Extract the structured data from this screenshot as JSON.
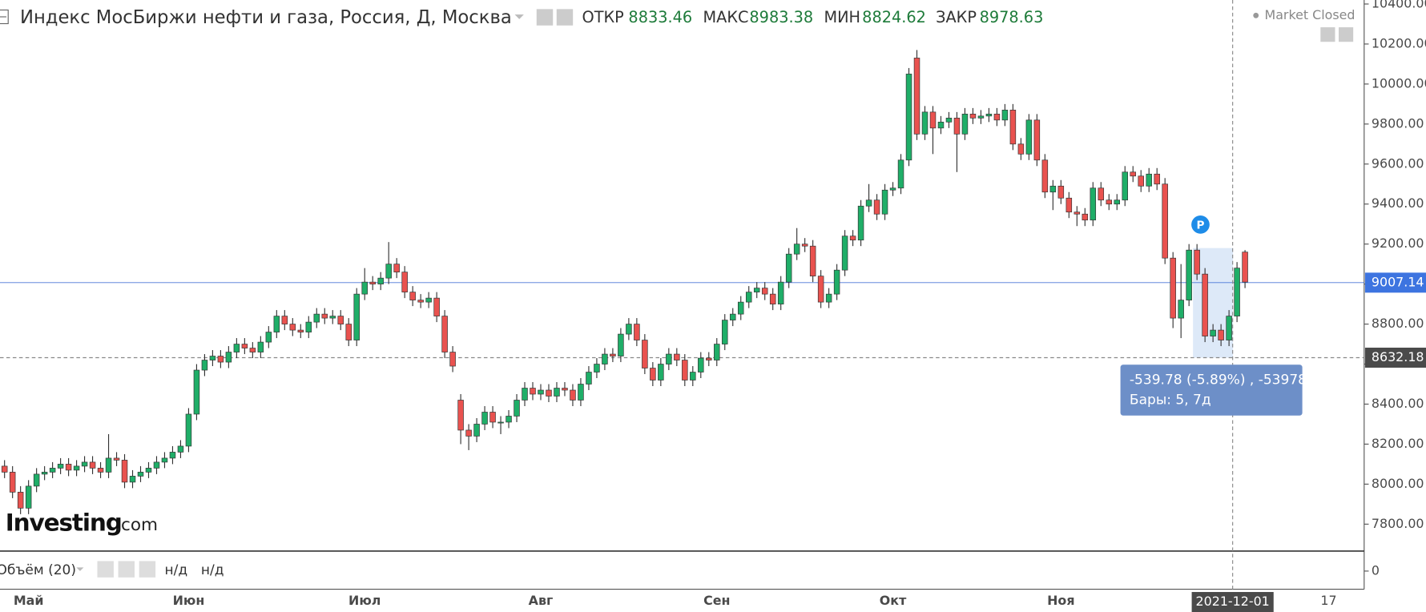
{
  "chart_data": {
    "type": "candlestick",
    "title": "Индекс МосБиржи нефти и газа, Россия, Д, Москва",
    "ohlc": [
      {
        "label": "ОТКР",
        "value": 8833.46
      },
      {
        "label": "МАКС",
        "value": 8983.38
      },
      {
        "label": "МИН",
        "value": 8824.62
      },
      {
        "label": "ЗАКР",
        "value": 8978.63
      }
    ],
    "status": "Market Closed",
    "watermark": [
      "Investing",
      ".com"
    ],
    "up_color": "#1fae68",
    "down_color": "#e9524f",
    "categories": [
      null,
      null,
      null,
      "Май",
      null,
      null,
      null,
      null,
      null,
      null,
      null,
      null,
      null,
      null,
      null,
      null,
      null,
      null,
      null,
      null,
      null,
      null,
      null,
      "Июн",
      null,
      null,
      null,
      null,
      null,
      null,
      null,
      null,
      null,
      null,
      null,
      null,
      null,
      null,
      null,
      null,
      null,
      null,
      null,
      null,
      null,
      "Июл",
      null,
      null,
      null,
      null,
      null,
      null,
      null,
      null,
      null,
      null,
      null,
      null,
      null,
      null,
      null,
      null,
      null,
      null,
      null,
      null,
      null,
      "Авг",
      null,
      null,
      null,
      null,
      null,
      null,
      null,
      null,
      null,
      null,
      null,
      null,
      null,
      null,
      null,
      null,
      null,
      null,
      null,
      null,
      null,
      "Сен",
      null,
      null,
      null,
      null,
      null,
      null,
      null,
      null,
      null,
      null,
      null,
      null,
      null,
      null,
      null,
      null,
      null,
      null,
      null,
      null,
      null,
      "Окт",
      null,
      null,
      null,
      null,
      null,
      null,
      null,
      null,
      null,
      null,
      null,
      null,
      null,
      null,
      null,
      null,
      null,
      null,
      null,
      null,
      "Ноя",
      null,
      null,
      null,
      null,
      null,
      null,
      null,
      null,
      null,
      null,
      null,
      null,
      null,
      null,
      null,
      null,
      null,
      null,
      null,
      null,
      "2021-12-01",
      null,
      null
    ],
    "x_extra_label": "17",
    "open": [
      8090,
      8060,
      7960,
      7880,
      7990,
      8050,
      8060,
      8080,
      8100,
      8070,
      8090,
      8110,
      8080,
      8060,
      8130,
      8120,
      8010,
      8040,
      8060,
      8080,
      8110,
      8130,
      8160,
      8190,
      8350,
      8570,
      8620,
      8640,
      8610,
      8660,
      8700,
      8680,
      8660,
      8710,
      8760,
      8840,
      8800,
      8770,
      8760,
      8810,
      8850,
      8830,
      8840,
      8800,
      8720,
      8950,
      9010,
      9000,
      9030,
      9100,
      9060,
      8960,
      8920,
      8910,
      8930,
      8840,
      8660,
      8420,
      8270,
      8240,
      8300,
      8360,
      8310,
      8310,
      8340,
      8420,
      8480,
      8450,
      8470,
      8440,
      8480,
      8470,
      8420,
      8500,
      8560,
      8600,
      8650,
      8640,
      8750,
      8800,
      8720,
      8580,
      8520,
      8600,
      8650,
      8620,
      8520,
      8560,
      8630,
      8620,
      8700,
      8820,
      8850,
      8910,
      8960,
      8980,
      8950,
      8900,
      9010,
      9150,
      9200,
      9190,
      9040,
      8910,
      8950,
      9070,
      9240,
      9220,
      9390,
      9420,
      9350,
      9470,
      9480,
      9620,
      10130,
      9750,
      9860,
      9780,
      9810,
      9830,
      9750,
      9850,
      9830,
      9840,
      9850,
      9820,
      9870,
      9700,
      9650,
      9820,
      9620,
      9460,
      9490,
      9430,
      9360,
      9350,
      9320,
      9480,
      9420,
      9400,
      9420,
      9560,
      9540,
      9490,
      9550,
      9500,
      9130,
      8830,
      8920,
      9170,
      9050,
      8740,
      8770,
      8720,
      8840,
      9160
    ],
    "high": [
      8120,
      8090,
      7990,
      8020,
      8080,
      8090,
      8110,
      8130,
      8130,
      8120,
      8140,
      8140,
      8110,
      8250,
      8160,
      8150,
      8070,
      8090,
      8110,
      8140,
      8160,
      8190,
      8220,
      8380,
      8600,
      8650,
      8670,
      8670,
      8690,
      8730,
      8730,
      8710,
      8740,
      8790,
      8870,
      8870,
      8830,
      8800,
      8840,
      8880,
      8880,
      8870,
      8870,
      8830,
      8980,
      9080,
      9040,
      9060,
      9210,
      9130,
      9090,
      8990,
      8950,
      8960,
      8960,
      8870,
      8690,
      8450,
      8300,
      8330,
      8390,
      8390,
      8340,
      8370,
      8450,
      8510,
      8510,
      8500,
      8500,
      8510,
      8510,
      8500,
      8530,
      8590,
      8630,
      8680,
      8680,
      8780,
      8830,
      8830,
      8750,
      8610,
      8630,
      8680,
      8680,
      8650,
      8590,
      8660,
      8660,
      8730,
      8850,
      8880,
      8940,
      8990,
      9010,
      9010,
      8980,
      9040,
      9180,
      9280,
      9230,
      9220,
      9070,
      8980,
      9100,
      9270,
      9270,
      9420,
      9500,
      9450,
      9500,
      9510,
      9650,
      10080,
      10170,
      9890,
      9890,
      9840,
      9860,
      9860,
      9880,
      9880,
      9870,
      9880,
      9880,
      9900,
      9900,
      9730,
      9850,
      9850,
      9650,
      9520,
      9520,
      9460,
      9390,
      9380,
      9510,
      9510,
      9450,
      9450,
      9590,
      9590,
      9570,
      9580,
      9580,
      9530,
      9160,
      9100,
      9200,
      9200,
      9080,
      8800,
      8800,
      8870,
      9110,
      9170
    ],
    "low": [
      8030,
      7930,
      7850,
      7850,
      7960,
      8020,
      8030,
      8050,
      8040,
      8040,
      8060,
      8050,
      8030,
      8030,
      8090,
      7980,
      7980,
      8010,
      8030,
      8050,
      8080,
      8100,
      8130,
      8160,
      8320,
      8540,
      8590,
      8580,
      8580,
      8630,
      8650,
      8630,
      8630,
      8680,
      8730,
      8770,
      8740,
      8730,
      8730,
      8780,
      8800,
      8800,
      8770,
      8690,
      8690,
      8920,
      8970,
      8970,
      9000,
      9030,
      8930,
      8890,
      8880,
      8880,
      8810,
      8630,
      8560,
      8200,
      8170,
      8210,
      8270,
      8280,
      8250,
      8280,
      8310,
      8390,
      8420,
      8420,
      8410,
      8410,
      8440,
      8390,
      8390,
      8470,
      8530,
      8570,
      8610,
      8610,
      8720,
      8690,
      8550,
      8490,
      8490,
      8570,
      8590,
      8490,
      8490,
      8530,
      8590,
      8590,
      8670,
      8790,
      8820,
      8880,
      8930,
      8920,
      8870,
      8870,
      8980,
      9120,
      9160,
      9010,
      8880,
      8880,
      8920,
      9040,
      9190,
      9190,
      9360,
      9320,
      9320,
      9440,
      9450,
      9590,
      9720,
      9720,
      9650,
      9750,
      9780,
      9560,
      9720,
      9800,
      9800,
      9810,
      9790,
      9790,
      9670,
      9620,
      9620,
      9590,
      9430,
      9370,
      9400,
      9330,
      9290,
      9290,
      9290,
      9390,
      9370,
      9370,
      9390,
      9510,
      9460,
      9460,
      9470,
      9100,
      8780,
      8730,
      8890,
      9020,
      8710,
      8710,
      8690,
      8690,
      8810,
      8980
    ],
    "close": [
      8060,
      7960,
      7880,
      7990,
      8050,
      8060,
      8080,
      8100,
      8070,
      8090,
      8110,
      8080,
      8060,
      8130,
      8120,
      8010,
      8040,
      8060,
      8080,
      8110,
      8130,
      8160,
      8190,
      8350,
      8570,
      8620,
      8640,
      8610,
      8660,
      8700,
      8680,
      8660,
      8710,
      8760,
      8840,
      8800,
      8770,
      8760,
      8810,
      8850,
      8830,
      8840,
      8800,
      8720,
      8950,
      9010,
      9000,
      9030,
      9100,
      9060,
      8960,
      8920,
      8910,
      8930,
      8840,
      8660,
      8590,
      8270,
      8240,
      8300,
      8360,
      8310,
      8310,
      8340,
      8420,
      8480,
      8450,
      8470,
      8440,
      8480,
      8470,
      8420,
      8500,
      8560,
      8600,
      8650,
      8640,
      8750,
      8800,
      8720,
      8580,
      8520,
      8600,
      8650,
      8620,
      8520,
      8560,
      8630,
      8620,
      8700,
      8820,
      8850,
      8910,
      8960,
      8980,
      8950,
      8900,
      9010,
      9150,
      9200,
      9190,
      9040,
      8910,
      8950,
      9070,
      9240,
      9220,
      9390,
      9420,
      9350,
      9470,
      9480,
      9620,
      10050,
      9750,
      9860,
      9780,
      9810,
      9830,
      9750,
      9850,
      9830,
      9840,
      9850,
      9820,
      9870,
      9700,
      9650,
      9820,
      9620,
      9460,
      9490,
      9430,
      9360,
      9350,
      9320,
      9480,
      9420,
      9400,
      9420,
      9560,
      9540,
      9490,
      9550,
      9500,
      9130,
      8830,
      8920,
      9170,
      9050,
      8740,
      8770,
      8720,
      8840,
      9080,
      9010
    ],
    "ylim": [
      7670,
      10420
    ],
    "yticks": [
      {
        "value": 7800,
        "label": "7800.00"
      },
      {
        "value": 8000,
        "label": "8000.00"
      },
      {
        "value": 8200,
        "label": "8200.00"
      },
      {
        "value": 8400,
        "label": "8400.00"
      },
      {
        "value": 8600,
        "label": "8600.00"
      },
      {
        "value": 8800,
        "label": "8800.00"
      },
      {
        "value": 9000,
        "label": "9000.00"
      },
      {
        "value": 9200,
        "label": "9200.00"
      },
      {
        "value": 9400,
        "label": "9400.00"
      },
      {
        "value": 9600,
        "label": "9600.00"
      },
      {
        "value": 9800,
        "label": "9800.00"
      },
      {
        "value": 10000,
        "label": "10000.00"
      },
      {
        "value": 10200,
        "label": "10200.00"
      },
      {
        "value": 10400,
        "label": "10400.00"
      }
    ],
    "price_line": 9007.14,
    "crosshair_price": 8632.18,
    "marker": "P",
    "measure": {
      "change": "-539.78 (-5.89%) , -53978",
      "bars": "Бары: 5, 7д"
    },
    "volume": {
      "title": "Объём (20)",
      "values": [
        "н/д",
        "н/д"
      ],
      "yticks": [
        0
      ]
    }
  }
}
